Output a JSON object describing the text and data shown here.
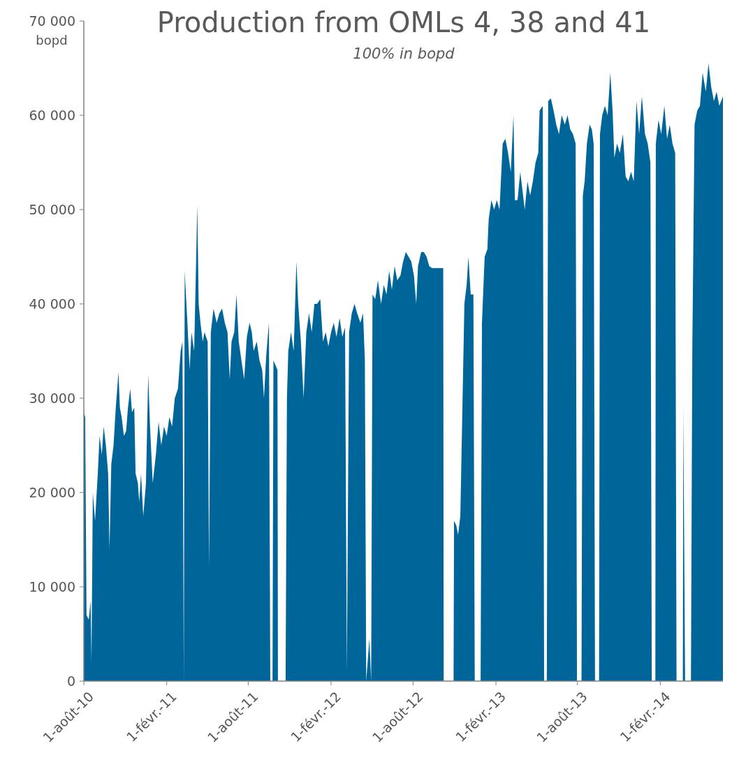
{
  "chart_data": {
    "type": "area",
    "title": "Production from OMLs 4, 38 and 41",
    "subtitle": "100% in bopd",
    "ylabel": "bopd",
    "x": [
      "2010-08-01",
      "2010-08-04",
      "2010-08-07",
      "2010-08-12",
      "2010-08-16",
      "2010-08-18",
      "2010-08-21",
      "2010-08-26",
      "2010-09-01",
      "2010-09-05",
      "2010-09-10",
      "2010-09-14",
      "2010-09-19",
      "2010-09-24",
      "2010-09-27",
      "2010-10-01",
      "2010-10-06",
      "2010-10-11",
      "2010-10-17",
      "2010-10-20",
      "2010-10-24",
      "2010-10-29",
      "2010-11-03",
      "2010-11-07",
      "2010-11-12",
      "2010-11-16",
      "2010-11-21",
      "2010-11-24",
      "2010-11-29",
      "2010-12-02",
      "2010-12-06",
      "2010-12-11",
      "2010-12-17",
      "2010-12-22",
      "2010-12-26",
      "2011-01-01",
      "2011-01-08",
      "2011-01-14",
      "2011-01-20",
      "2011-01-26",
      "2011-02-01",
      "2011-02-07",
      "2011-02-13",
      "2011-02-19",
      "2011-02-26",
      "2011-03-04",
      "2011-03-08",
      "2011-03-11",
      "2011-03-13",
      "2011-03-19",
      "2011-03-24",
      "2011-03-28",
      "2011-04-03",
      "2011-04-08",
      "2011-04-10",
      "2011-04-13",
      "2011-04-17",
      "2011-04-22",
      "2011-04-26",
      "2011-05-03",
      "2011-05-06",
      "2011-05-10",
      "2011-05-16",
      "2011-05-23",
      "2011-05-29",
      "2011-06-04",
      "2011-06-10",
      "2011-06-16",
      "2011-06-21",
      "2011-06-25",
      "2011-07-01",
      "2011-07-06",
      "2011-07-11",
      "2011-07-17",
      "2011-07-23",
      "2011-07-29",
      "2011-08-04",
      "2011-08-09",
      "2011-08-13",
      "2011-08-20",
      "2011-08-26",
      "2011-09-01",
      "2011-09-05",
      "2011-09-10",
      "2011-09-16",
      "2011-09-19",
      "2011-09-24",
      "2011-09-26",
      "2011-10-05",
      "2011-10-06",
      "2011-10-23",
      "2011-10-26",
      "2011-10-29",
      "2011-11-04",
      "2011-11-10",
      "2011-11-16",
      "2011-11-20",
      "2011-11-26",
      "2011-12-02",
      "2011-12-08",
      "2011-12-14",
      "2011-12-20",
      "2011-12-26",
      "2012-01-01",
      "2012-01-08",
      "2012-01-14",
      "2012-01-20",
      "2012-01-26",
      "2012-02-01",
      "2012-02-07",
      "2012-02-13",
      "2012-02-20",
      "2012-02-26",
      "2012-03-03",
      "2012-03-07",
      "2012-03-12",
      "2012-03-18",
      "2012-03-24",
      "2012-03-30",
      "2012-04-06",
      "2012-04-12",
      "2012-04-16",
      "2012-04-19",
      "2012-04-26",
      "2012-04-30",
      "2012-05-03",
      "2012-05-09",
      "2012-05-15",
      "2012-05-22",
      "2012-05-28",
      "2012-06-03",
      "2012-06-09",
      "2012-06-15",
      "2012-06-21",
      "2012-06-27",
      "2012-07-04",
      "2012-07-10",
      "2012-07-16",
      "2012-07-22",
      "2012-07-28",
      "2012-08-03",
      "2012-08-08",
      "2012-08-12",
      "2012-08-19",
      "2012-08-25",
      "2012-08-31",
      "2012-09-06",
      "2012-09-12",
      "2012-09-21",
      "2012-10-07",
      "2012-10-08",
      "2012-10-30",
      "2012-10-31",
      "2012-11-05",
      "2012-11-09",
      "2012-11-14",
      "2012-11-19",
      "2012-11-23",
      "2012-11-28",
      "2012-12-02",
      "2012-12-07",
      "2012-12-13",
      "2012-12-16",
      "2012-12-29",
      "2013-01-01",
      "2013-01-07",
      "2013-01-13",
      "2013-01-16",
      "2013-01-22",
      "2013-01-28",
      "2013-02-03",
      "2013-02-09",
      "2013-02-16",
      "2013-02-22",
      "2013-02-28",
      "2013-03-06",
      "2013-03-12",
      "2013-03-15",
      "2013-03-21",
      "2013-03-27",
      "2013-04-01",
      "2013-04-06",
      "2013-04-12",
      "2013-04-18",
      "2013-04-24",
      "2013-04-30",
      "2013-05-06",
      "2013-05-09",
      "2013-05-16",
      "2013-05-19",
      "2013-05-25",
      "2013-05-28",
      "2013-06-03",
      "2013-06-09",
      "2013-06-15",
      "2013-06-21",
      "2013-06-27",
      "2013-07-04",
      "2013-07-10",
      "2013-07-16",
      "2013-07-22",
      "2013-07-28",
      "2013-07-31",
      "2013-08-10",
      "2013-08-13",
      "2013-08-17",
      "2013-08-22",
      "2013-08-28",
      "2013-09-02",
      "2013-09-06",
      "2013-09-09",
      "2013-09-18",
      "2013-09-20",
      "2013-09-25",
      "2013-10-01",
      "2013-10-07",
      "2013-10-13",
      "2013-10-18",
      "2013-10-22",
      "2013-10-28",
      "2013-11-03",
      "2013-11-10",
      "2013-11-16",
      "2013-11-22",
      "2013-11-28",
      "2013-12-04",
      "2013-12-10",
      "2013-12-16",
      "2013-12-22",
      "2013-12-29",
      "2014-01-04",
      "2014-01-10",
      "2014-01-13",
      "2014-01-21",
      "2014-01-22",
      "2014-01-28",
      "2014-02-03",
      "2014-02-10",
      "2014-02-16",
      "2014-02-22",
      "2014-02-28",
      "2014-03-06",
      "2014-03-09",
      "2014-03-23",
      "2014-03-24",
      "2014-03-28",
      "2014-04-10",
      "2014-04-13",
      "2014-04-18",
      "2014-04-24",
      "2014-04-30",
      "2014-05-06",
      "2014-05-13",
      "2014-05-19",
      "2014-05-25",
      "2014-05-31",
      "2014-06-06",
      "2014-06-12",
      "2014-06-20"
    ],
    "series": [
      {
        "color": "#006699",
        "values": [
          28500,
          28000,
          7000,
          6500,
          8500,
          2000,
          20000,
          17000,
          22000,
          26000,
          24000,
          27000,
          25000,
          22000,
          14000,
          23000,
          25000,
          29000,
          32800,
          29000,
          28000,
          26000,
          26500,
          29000,
          31000,
          28500,
          29000,
          22000,
          21000,
          19000,
          22000,
          17500,
          21000,
          32500,
          27000,
          21000,
          24000,
          27500,
          25000,
          27000,
          26000,
          28000,
          27000,
          30000,
          31000,
          35000,
          36000,
          0,
          43500,
          38000,
          33000,
          37000,
          35000,
          46000,
          50500,
          40000,
          38000,
          36000,
          37000,
          36000,
          12000,
          37000,
          39500,
          38000,
          39000,
          39500,
          38000,
          37000,
          32000,
          36000,
          37000,
          41000,
          36000,
          34000,
          32000,
          36500,
          38000,
          37000,
          35000,
          36000,
          34000,
          33000,
          30000,
          34500,
          38000,
          0,
          0,
          34000,
          33000,
          0,
          0,
          30000,
          35000,
          37000,
          35000,
          44500,
          40000,
          36000,
          30000,
          37000,
          39000,
          37000,
          40000,
          40000,
          40500,
          36000,
          37000,
          35500,
          37000,
          38000,
          36500,
          38500,
          36500,
          37500,
          1000,
          37000,
          39000,
          40000,
          39000,
          38000,
          39000,
          34000,
          0,
          4500,
          0,
          41000,
          40500,
          42500,
          40000,
          42000,
          41000,
          43500,
          41500,
          44000,
          42500,
          43000,
          44500,
          45500,
          45000,
          44500,
          43000,
          40000,
          44000,
          45500,
          45500,
          45000,
          44000,
          43800,
          43800,
          43800,
          0,
          0,
          17000,
          16500,
          15500,
          17500,
          30000,
          40000,
          42000,
          45000,
          41000,
          41000,
          0,
          0,
          38000,
          45000,
          45800,
          49000,
          51000,
          50000,
          51000,
          50000,
          57000,
          57500,
          56000,
          54000,
          60000,
          51000,
          51000,
          54000,
          52000,
          50000,
          53000,
          51500,
          53000,
          55000,
          56000,
          60500,
          61000,
          0,
          0,
          61500,
          61800,
          60500,
          59000,
          58000,
          60000,
          59000,
          60000,
          58500,
          58000,
          57000,
          0,
          0,
          51500,
          53000,
          57000,
          59000,
          58500,
          57000,
          0,
          0,
          58000,
          60000,
          61000,
          60000,
          64500,
          60500,
          55500,
          57000,
          56000,
          58000,
          53500,
          53000,
          54000,
          53000,
          61500,
          58000,
          62000,
          58000,
          57000,
          55000,
          0,
          0,
          57000,
          59500,
          58000,
          61000,
          57500,
          59000,
          57000,
          56000,
          0,
          0,
          29000,
          0,
          0,
          35000,
          59000,
          60500,
          61000,
          64500,
          62500,
          65500,
          63000,
          61500,
          62500,
          61000,
          62000
        ]
      }
    ],
    "xlim": [
      "2010-08-01",
      "2014-06-20"
    ],
    "xticks": [
      {
        "value": "2010-08-01",
        "label": "1-août-10"
      },
      {
        "value": "2011-02-01",
        "label": "1-févr.-11"
      },
      {
        "value": "2011-08-01",
        "label": "1-août-11"
      },
      {
        "value": "2012-02-01",
        "label": "1-févr.-12"
      },
      {
        "value": "2012-08-01",
        "label": "1-août-12"
      },
      {
        "value": "2013-02-01",
        "label": "1-févr.-13"
      },
      {
        "value": "2013-08-01",
        "label": "1-août-13"
      },
      {
        "value": "2014-02-01",
        "label": "1-févr.-14"
      }
    ],
    "ylim": [
      0,
      70000
    ],
    "yticks": [
      0,
      {
        "value": 10000,
        "label": "10 000"
      },
      {
        "value": 20000,
        "label": "20 000"
      },
      {
        "value": 30000,
        "label": "30 000"
      },
      {
        "value": 40000,
        "label": "40 000"
      },
      {
        "value": 50000,
        "label": "50 000"
      },
      {
        "value": 60000,
        "label": "60 000"
      },
      {
        "value": 70000,
        "label": "70 000"
      }
    ],
    "tick_labels": true
  }
}
